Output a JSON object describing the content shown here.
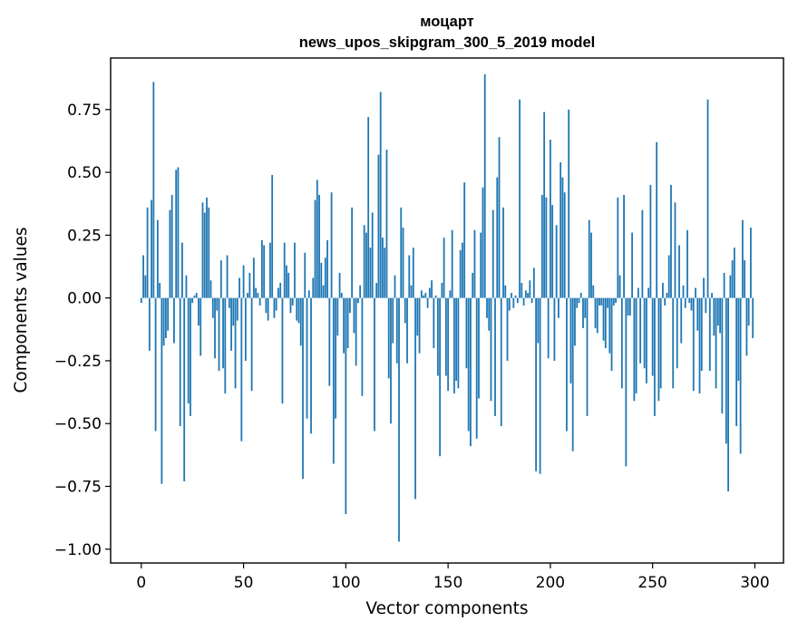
{
  "chart_data": {
    "type": "bar",
    "title": "моцарт",
    "subtitle": "news_upos_skipgram_300_5_2019 model",
    "xlabel": "Vector components",
    "ylabel": "Components values",
    "xlim": [
      -15,
      314
    ],
    "ylim": [
      -1.055,
      0.955
    ],
    "xticks": [
      0,
      50,
      100,
      150,
      200,
      250,
      300
    ],
    "yticks": [
      -1.0,
      -0.75,
      -0.5,
      -0.25,
      0.0,
      0.25,
      0.5,
      0.75
    ],
    "ytick_labels": [
      "−1.00",
      "−0.75",
      "−0.50",
      "−0.25",
      "0.00",
      "0.25",
      "0.50",
      "0.75"
    ],
    "bar_color": "#1f77b4",
    "values": [
      -0.02,
      0.17,
      0.09,
      0.36,
      -0.21,
      0.39,
      0.86,
      -0.53,
      0.31,
      0.06,
      -0.74,
      -0.19,
      -0.16,
      -0.13,
      0.35,
      0.41,
      -0.18,
      0.51,
      0.52,
      -0.51,
      0.22,
      -0.73,
      0.09,
      -0.42,
      -0.47,
      -0.02,
      0.01,
      0.02,
      -0.11,
      -0.23,
      0.38,
      0.34,
      0.4,
      0.36,
      0.07,
      -0.08,
      -0.24,
      -0.05,
      -0.29,
      0.15,
      -0.28,
      -0.38,
      0.17,
      -0.04,
      -0.21,
      -0.11,
      -0.36,
      -0.09,
      0.08,
      -0.57,
      0.13,
      -0.25,
      0.02,
      0.1,
      -0.37,
      0.16,
      0.04,
      0.02,
      -0.03,
      0.23,
      0.21,
      -0.06,
      -0.09,
      0.22,
      0.49,
      -0.08,
      -0.05,
      0.04,
      0.06,
      -0.42,
      0.22,
      0.13,
      0.1,
      -0.06,
      -0.03,
      0.22,
      -0.09,
      -0.1,
      -0.19,
      -0.72,
      0.18,
      -0.48,
      0.03,
      -0.54,
      0.08,
      0.39,
      0.47,
      0.41,
      0.14,
      0.05,
      0.16,
      0.23,
      -0.35,
      0.42,
      -0.66,
      -0.48,
      -0.15,
      0.1,
      0.02,
      -0.22,
      -0.86,
      -0.2,
      -0.06,
      0.36,
      -0.14,
      -0.27,
      -0.02,
      0.05,
      -0.39,
      0.29,
      0.26,
      0.72,
      0.2,
      0.34,
      -0.53,
      0.06,
      0.57,
      0.82,
      0.24,
      0.2,
      0.59,
      -0.32,
      -0.5,
      -0.18,
      0.09,
      -0.26,
      -0.97,
      0.36,
      0.28,
      -0.1,
      -0.26,
      0.17,
      0.05,
      0.2,
      -0.8,
      -0.15,
      -0.22,
      0.03,
      0.01,
      0.02,
      -0.04,
      0.04,
      0.07,
      -0.2,
      0.01,
      -0.31,
      -0.63,
      0.06,
      0.24,
      -0.31,
      -0.37,
      0.03,
      0.27,
      -0.38,
      -0.33,
      -0.36,
      0.19,
      0.22,
      0.46,
      -0.28,
      -0.53,
      -0.59,
      0.1,
      0.27,
      -0.56,
      -0.4,
      0.26,
      0.44,
      0.89,
      -0.08,
      -0.13,
      -0.41,
      0.35,
      -0.47,
      0.48,
      0.64,
      -0.51,
      0.36,
      0.05,
      -0.25,
      -0.05,
      0.02,
      -0.04,
      0.01,
      -0.02,
      0.79,
      0.06,
      -0.03,
      0.03,
      0.02,
      0.07,
      -0.02,
      0.12,
      -0.69,
      -0.18,
      -0.7,
      0.41,
      0.74,
      0.4,
      -0.24,
      0.63,
      0.37,
      -0.25,
      0.29,
      -0.08,
      0.54,
      0.48,
      0.42,
      -0.53,
      0.75,
      -0.34,
      -0.61,
      -0.19,
      -0.04,
      -0.02,
      0.02,
      -0.12,
      -0.08,
      -0.47,
      0.31,
      0.26,
      0.05,
      -0.12,
      -0.14,
      -0.03,
      -0.03,
      -0.17,
      -0.2,
      -0.04,
      -0.22,
      -0.29,
      -0.03,
      -0.02,
      0.4,
      0.09,
      -0.36,
      0.41,
      -0.67,
      -0.07,
      -0.07,
      0.26,
      -0.41,
      -0.38,
      0.04,
      -0.26,
      0.35,
      -0.28,
      -0.34,
      0.04,
      0.45,
      -0.31,
      -0.47,
      0.62,
      -0.41,
      -0.36,
      0.06,
      -0.03,
      0.02,
      0.17,
      0.45,
      -0.36,
      0.38,
      -0.28,
      0.21,
      -0.18,
      0.05,
      -0.04,
      0.27,
      -0.02,
      -0.05,
      -0.37,
      0.04,
      -0.13,
      -0.38,
      -0.29,
      0.08,
      -0.06,
      0.79,
      -0.29,
      0.02,
      -0.15,
      -0.36,
      -0.11,
      -0.14,
      -0.46,
      0.1,
      -0.58,
      -0.77,
      0.09,
      0.15,
      0.2,
      -0.51,
      -0.33,
      -0.62,
      0.31,
      0.15,
      -0.23,
      -0.11,
      0.28,
      -0.16
    ]
  }
}
